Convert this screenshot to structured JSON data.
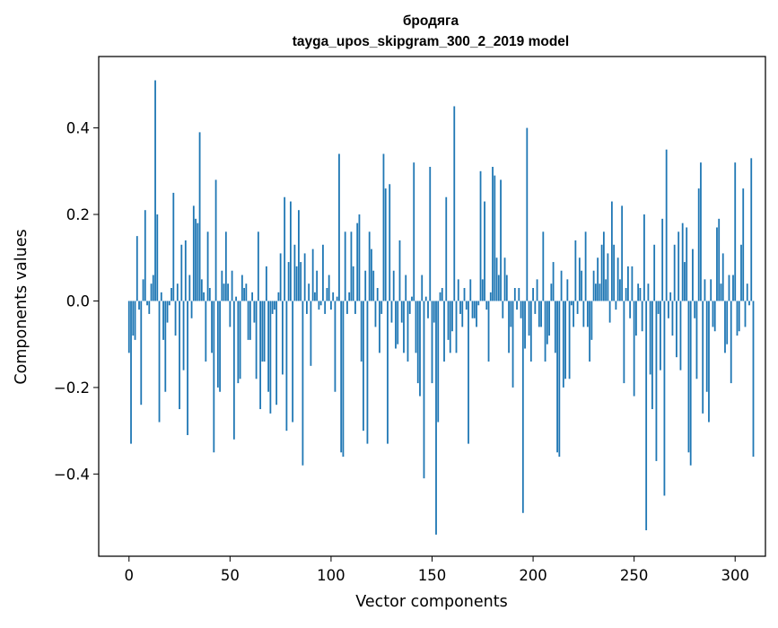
{
  "chart_data": {
    "type": "bar",
    "title_lines": [
      "бродяга",
      "tayga_upos_skipgram_300_2_2019 model"
    ],
    "xlabel": "Vector components",
    "ylabel": "Components values",
    "xlim": [
      -15,
      315
    ],
    "ylim": [
      -0.59,
      0.565
    ],
    "xticks": [
      0,
      50,
      100,
      150,
      200,
      250,
      300
    ],
    "xtick_labels": [
      "0",
      "50",
      "100",
      "150",
      "200",
      "250",
      "300"
    ],
    "yticks": [
      -0.4,
      -0.2,
      0.0,
      0.2,
      0.4
    ],
    "ytick_labels": [
      "−0.4",
      "−0.2",
      "0.0",
      "0.2",
      "0.4"
    ],
    "grid": false,
    "bar_color": "#1f77b4",
    "bar_width": 0.8,
    "series": [
      {
        "name": "бродяга",
        "values": [
          -0.12,
          -0.33,
          -0.08,
          -0.09,
          0.15,
          -0.02,
          -0.24,
          0.05,
          0.21,
          -0.01,
          -0.03,
          0.04,
          0.06,
          0.51,
          0.2,
          -0.28,
          0.02,
          -0.09,
          -0.21,
          -0.05,
          -0.01,
          0.03,
          0.25,
          -0.08,
          0.04,
          -0.25,
          0.13,
          -0.16,
          0.14,
          -0.31,
          0.06,
          -0.04,
          0.22,
          0.19,
          0.18,
          0.39,
          0.05,
          0.02,
          -0.14,
          0.16,
          0.03,
          -0.12,
          -0.35,
          0.28,
          -0.2,
          -0.21,
          0.07,
          0.04,
          0.16,
          0.04,
          -0.06,
          0.07,
          -0.32,
          0.01,
          -0.19,
          -0.18,
          0.06,
          0.03,
          0.04,
          -0.09,
          -0.09,
          0.02,
          -0.05,
          -0.18,
          0.16,
          -0.25,
          -0.14,
          -0.14,
          0.08,
          -0.21,
          -0.26,
          -0.03,
          -0.02,
          -0.24,
          0.02,
          0.11,
          -0.17,
          0.24,
          -0.3,
          0.09,
          0.23,
          -0.28,
          0.13,
          0.08,
          0.21,
          0.09,
          -0.38,
          0.11,
          -0.03,
          0.04,
          -0.15,
          0.12,
          0.02,
          0.07,
          -0.02,
          -0.01,
          0.13,
          -0.03,
          0.03,
          0.06,
          -0.02,
          0.02,
          -0.21,
          0.01,
          0.34,
          -0.35,
          -0.36,
          0.16,
          -0.03,
          0.02,
          0.16,
          0.08,
          -0.03,
          0.18,
          0.2,
          -0.14,
          -0.3,
          0.07,
          -0.33,
          0.16,
          0.12,
          0.07,
          -0.06,
          0.03,
          -0.12,
          -0.03,
          0.34,
          0.26,
          -0.33,
          0.27,
          -0.05,
          0.07,
          -0.11,
          -0.1,
          0.14,
          -0.05,
          -0.12,
          0.06,
          -0.14,
          -0.03,
          0.01,
          0.32,
          -0.12,
          -0.19,
          -0.22,
          0.06,
          -0.41,
          0.01,
          -0.04,
          0.31,
          -0.19,
          -0.05,
          -0.54,
          -0.28,
          0.02,
          0.03,
          -0.14,
          0.24,
          -0.09,
          -0.12,
          -0.07,
          0.45,
          -0.12,
          0.05,
          -0.03,
          -0.06,
          0.03,
          -0.02,
          -0.33,
          0.05,
          -0.04,
          -0.04,
          -0.06,
          -0.01,
          0.3,
          0.05,
          0.23,
          -0.02,
          -0.14,
          0.02,
          0.31,
          0.29,
          0.1,
          0.06,
          0.28,
          -0.04,
          0.1,
          0.06,
          -0.12,
          -0.06,
          -0.2,
          0.03,
          -0.02,
          0.03,
          -0.04,
          -0.49,
          -0.11,
          0.4,
          -0.08,
          -0.14,
          0.03,
          -0.03,
          0.05,
          -0.06,
          -0.06,
          0.16,
          -0.14,
          -0.1,
          -0.08,
          0.04,
          0.09,
          -0.12,
          -0.35,
          -0.36,
          0.07,
          -0.2,
          -0.18,
          0.05,
          -0.18,
          -0.01,
          -0.06,
          0.14,
          -0.03,
          0.1,
          0.07,
          -0.06,
          0.16,
          -0.06,
          -0.14,
          -0.09,
          0.07,
          0.04,
          0.1,
          0.04,
          0.13,
          0.16,
          0.05,
          0.11,
          -0.05,
          0.23,
          0.13,
          -0.02,
          0.1,
          0.05,
          0.22,
          -0.19,
          0.03,
          0.08,
          -0.04,
          0.08,
          -0.22,
          -0.08,
          0.04,
          0.03,
          -0.07,
          0.2,
          -0.53,
          0.04,
          -0.17,
          -0.25,
          0.13,
          -0.37,
          -0.03,
          -0.16,
          0.19,
          -0.45,
          0.35,
          -0.04,
          0.02,
          -0.08,
          0.13,
          -0.13,
          0.16,
          -0.16,
          0.18,
          0.09,
          0.17,
          -0.35,
          -0.38,
          0.12,
          -0.04,
          -0.18,
          0.26,
          0.32,
          -0.26,
          0.05,
          -0.21,
          -0.28,
          0.05,
          -0.06,
          -0.07,
          0.17,
          0.19,
          0.04,
          0.11,
          -0.12,
          -0.1,
          0.06,
          -0.19,
          0.06,
          0.32,
          -0.08,
          -0.07,
          0.13,
          0.26,
          -0.06,
          0.04,
          -0.01,
          0.33,
          -0.36
        ]
      }
    ]
  }
}
